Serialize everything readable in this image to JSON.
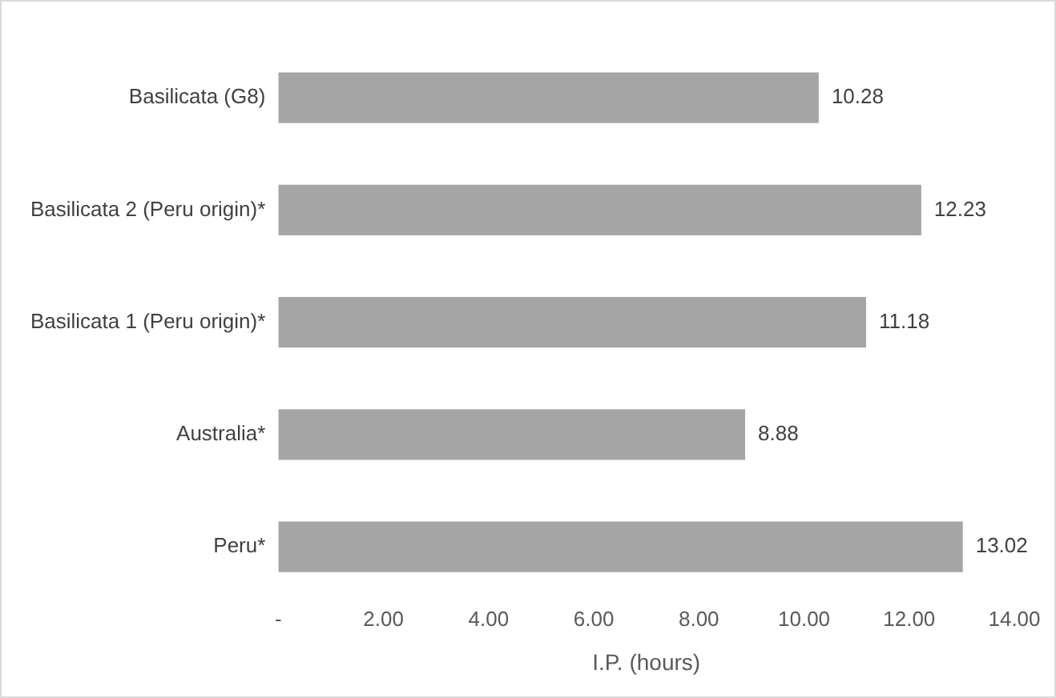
{
  "chart_data": {
    "type": "bar",
    "orientation": "horizontal",
    "xlabel": "I.P. (hours)",
    "categories": [
      "Basilicata (G8)",
      "Basilicata 2 (Peru origin)*",
      "Basilicata 1 (Peru origin)*",
      "Australia*",
      "Peru*"
    ],
    "values": [
      10.28,
      12.23,
      11.18,
      8.88,
      13.02
    ],
    "color": "#a5a5a5",
    "xlim": [
      0,
      14
    ],
    "xticks": [
      {
        "value": 0,
        "label": "-"
      },
      {
        "value": 2,
        "label": "2.00"
      },
      {
        "value": 4,
        "label": "4.00"
      },
      {
        "value": 6,
        "label": "6.00"
      },
      {
        "value": 8,
        "label": "8.00"
      },
      {
        "value": 10,
        "label": "10.00"
      },
      {
        "value": 12,
        "label": "12.00"
      },
      {
        "value": 14,
        "label": "14.00"
      }
    ],
    "data_labels": true,
    "grid": false,
    "legend": false
  }
}
